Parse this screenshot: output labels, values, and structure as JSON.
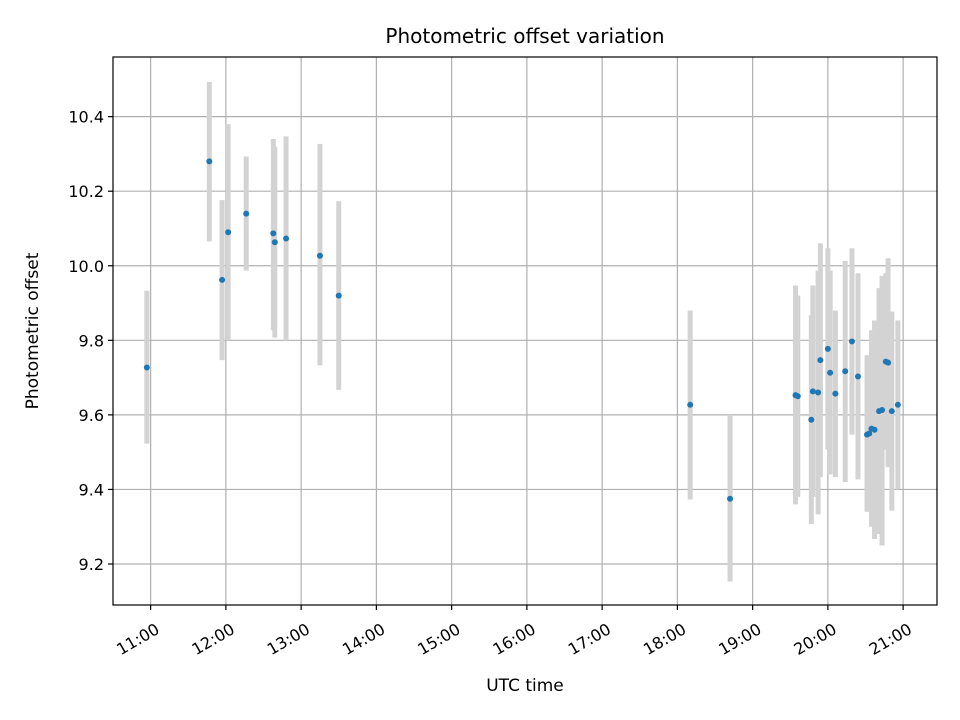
{
  "chart_data": {
    "type": "scatter",
    "title": "Photometric offset variation",
    "xlabel": "UTC time",
    "ylabel": "Photometric offset",
    "x_axis": {
      "unit": "hour",
      "range": [
        10.5,
        21.45
      ],
      "ticks": [
        11,
        12,
        13,
        14,
        15,
        16,
        17,
        18,
        19,
        20,
        21
      ],
      "tick_labels": [
        "11:00",
        "12:00",
        "13:00",
        "14:00",
        "15:00",
        "16:00",
        "17:00",
        "18:00",
        "19:00",
        "20:00",
        "21:00"
      ]
    },
    "y_axis": {
      "range": [
        9.09,
        10.56
      ],
      "ticks": [
        9.2,
        9.4,
        9.6,
        9.8,
        10.0,
        10.2,
        10.4
      ],
      "tick_labels": [
        "9.2",
        "9.4",
        "9.6",
        "9.8",
        "10.0",
        "10.2",
        "10.4"
      ]
    },
    "grid": true,
    "colors": {
      "marker": "#1f77b4",
      "errorbar": "#d3d3d3"
    },
    "points": [
      {
        "x": 10.95,
        "y": 9.727,
        "lo": 9.523,
        "hi": 9.933
      },
      {
        "x": 11.78,
        "y": 10.28,
        "lo": 10.065,
        "hi": 10.493
      },
      {
        "x": 11.95,
        "y": 9.962,
        "lo": 9.747,
        "hi": 10.176
      },
      {
        "x": 12.03,
        "y": 10.09,
        "lo": 9.8,
        "hi": 10.38
      },
      {
        "x": 12.27,
        "y": 10.14,
        "lo": 9.987,
        "hi": 10.293
      },
      {
        "x": 12.63,
        "y": 10.087,
        "lo": 9.827,
        "hi": 10.34
      },
      {
        "x": 12.65,
        "y": 10.063,
        "lo": 9.807,
        "hi": 10.32
      },
      {
        "x": 12.8,
        "y": 10.073,
        "lo": 9.8,
        "hi": 10.347
      },
      {
        "x": 13.25,
        "y": 10.027,
        "lo": 9.733,
        "hi": 10.327
      },
      {
        "x": 13.5,
        "y": 9.92,
        "lo": 9.667,
        "hi": 10.173
      },
      {
        "x": 18.17,
        "y": 9.627,
        "lo": 9.373,
        "hi": 9.88
      },
      {
        "x": 18.7,
        "y": 9.375,
        "lo": 9.153,
        "hi": 9.6
      },
      {
        "x": 19.57,
        "y": 9.653,
        "lo": 9.36,
        "hi": 9.947
      },
      {
        "x": 19.6,
        "y": 9.65,
        "lo": 9.38,
        "hi": 9.92
      },
      {
        "x": 19.78,
        "y": 9.587,
        "lo": 9.307,
        "hi": 9.867
      },
      {
        "x": 19.8,
        "y": 9.663,
        "lo": 9.38,
        "hi": 9.947
      },
      {
        "x": 19.87,
        "y": 9.66,
        "lo": 9.333,
        "hi": 9.987
      },
      {
        "x": 19.9,
        "y": 9.747,
        "lo": 9.433,
        "hi": 10.06
      },
      {
        "x": 20.0,
        "y": 9.777,
        "lo": 9.507,
        "hi": 10.047
      },
      {
        "x": 20.03,
        "y": 9.713,
        "lo": 9.44,
        "hi": 9.987
      },
      {
        "x": 20.1,
        "y": 9.657,
        "lo": 9.433,
        "hi": 9.88
      },
      {
        "x": 20.23,
        "y": 9.717,
        "lo": 9.42,
        "hi": 10.013
      },
      {
        "x": 20.32,
        "y": 9.797,
        "lo": 9.547,
        "hi": 10.047
      },
      {
        "x": 20.4,
        "y": 9.703,
        "lo": 9.427,
        "hi": 9.98
      },
      {
        "x": 20.52,
        "y": 9.547,
        "lo": 9.34,
        "hi": 9.76
      },
      {
        "x": 20.55,
        "y": 9.55,
        "lo": 9.34,
        "hi": 9.76
      },
      {
        "x": 20.58,
        "y": 9.563,
        "lo": 9.3,
        "hi": 9.827
      },
      {
        "x": 20.62,
        "y": 9.56,
        "lo": 9.267,
        "hi": 9.853
      },
      {
        "x": 20.68,
        "y": 9.61,
        "lo": 9.28,
        "hi": 9.94
      },
      {
        "x": 20.72,
        "y": 9.613,
        "lo": 9.25,
        "hi": 9.973
      },
      {
        "x": 20.77,
        "y": 9.743,
        "lo": 9.507,
        "hi": 9.98
      },
      {
        "x": 20.8,
        "y": 9.74,
        "lo": 9.46,
        "hi": 10.02
      },
      {
        "x": 20.85,
        "y": 9.61,
        "lo": 9.343,
        "hi": 9.877
      },
      {
        "x": 20.93,
        "y": 9.627,
        "lo": 9.4,
        "hi": 9.853
      }
    ]
  }
}
